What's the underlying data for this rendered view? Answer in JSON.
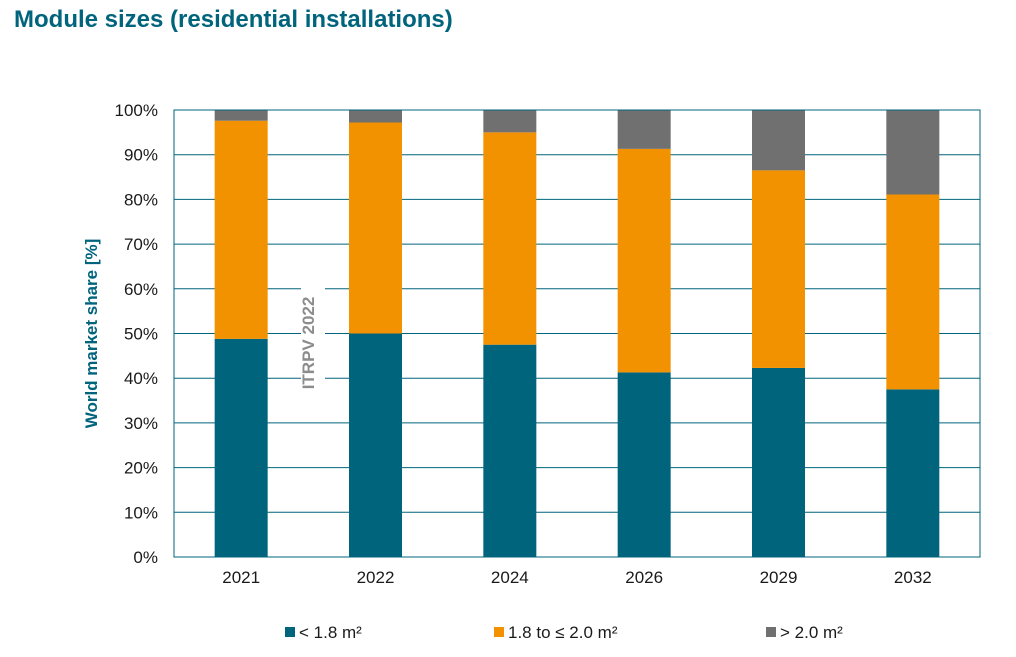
{
  "title": "Module sizes (residential installations)",
  "watermark": "ITRPV 2022",
  "chart_data": {
    "type": "bar",
    "stacked": true,
    "title": "Module sizes (residential installations)",
    "xlabel": "",
    "ylabel": "World market share [%]",
    "ylim": [
      0,
      100
    ],
    "yticks": [
      "0%",
      "10%",
      "20%",
      "30%",
      "40%",
      "50%",
      "60%",
      "70%",
      "80%",
      "90%",
      "100%"
    ],
    "grid": true,
    "legend_position": "bottom",
    "categories": [
      "2021",
      "2022",
      "2024",
      "2026",
      "2029",
      "2032"
    ],
    "series": [
      {
        "name": "< 1.8 m²",
        "color": "#00647d",
        "values": [
          48.8,
          50.0,
          47.5,
          41.3,
          42.3,
          37.5
        ]
      },
      {
        "name": "1.8 to ≤ 2.0 m²",
        "color": "#f39200",
        "values": [
          48.8,
          47.2,
          47.5,
          50.0,
          44.2,
          43.6
        ]
      },
      {
        "name": "> 2.0 m²",
        "color": "#707070",
        "values": [
          2.4,
          2.8,
          5.0,
          8.7,
          13.5,
          18.9
        ]
      }
    ]
  }
}
